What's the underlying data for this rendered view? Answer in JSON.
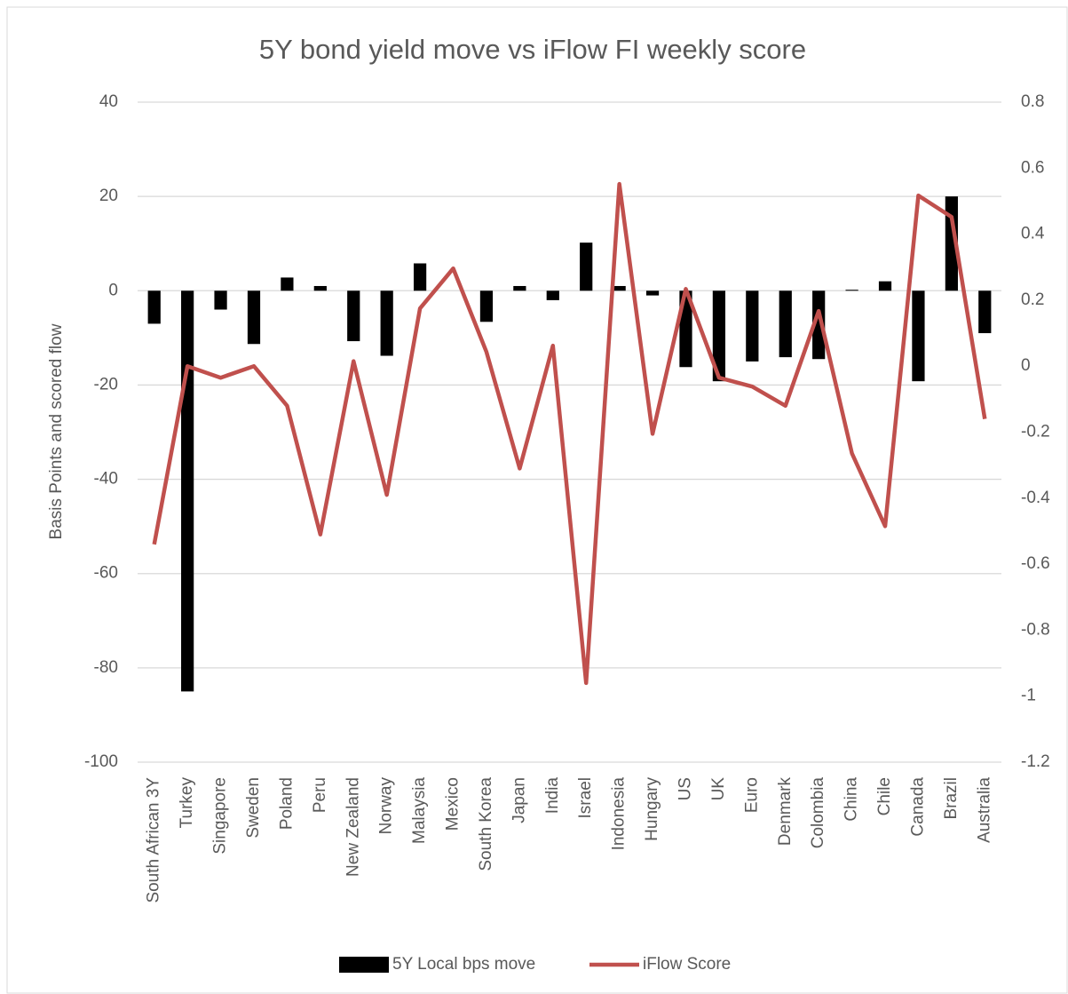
{
  "chart_data": {
    "type": "bar_line",
    "title": "5Y bond yield move vs iFlow FI weekly score",
    "y_label": "Basis Points and scored flow",
    "categories": [
      "South African 3Y",
      "Turkey",
      "Singapore",
      "Sweden",
      "Poland",
      "Peru",
      "New Zealand",
      "Norway",
      "Malaysia",
      "Mexico",
      "South Korea",
      "Japan",
      "India",
      "Israel",
      "Indonesia",
      "Hungary",
      "US",
      "UK",
      "Euro",
      "Denmark",
      "Colombia",
      "China",
      "Chile",
      "Canada",
      "Brazil",
      "Australia"
    ],
    "series": [
      {
        "name": "5Y Local bps move",
        "type": "bar",
        "color": "#000000",
        "values": [
          -7,
          -85,
          -4,
          -11.3,
          2.8,
          1,
          -10.7,
          -13.8,
          5.8,
          0,
          -6.6,
          1,
          -2,
          10.2,
          1,
          -1,
          -16.2,
          -19.2,
          -15,
          -14.1,
          -14.5,
          0.2,
          2,
          -19.2,
          20,
          -9
        ]
      },
      {
        "name": "iFlow Score",
        "type": "line",
        "axis": "y2",
        "color": "#c0504d",
        "values": [
          -0.54,
          0,
          -0.035,
          0,
          -0.12,
          -0.51,
          0.015,
          -0.39,
          0.175,
          0.296,
          0.043,
          -0.31,
          0.062,
          -0.96,
          0.552,
          -0.205,
          0.234,
          -0.035,
          -0.062,
          -0.12,
          0.167,
          -0.264,
          -0.485,
          0.517,
          0.452,
          -0.16
        ]
      }
    ],
    "ylim": [
      -100,
      40
    ],
    "yticks": [
      40,
      20,
      0,
      -20,
      -40,
      -60,
      -80,
      -100
    ],
    "y2lim": [
      -1.2,
      0.8
    ],
    "y2ticks": [
      0.8,
      0.6,
      0.4,
      0.2,
      0,
      -0.2,
      -0.4,
      -0.6,
      -0.8,
      -1,
      -1.2
    ],
    "grid": true,
    "legend": "bottom"
  }
}
